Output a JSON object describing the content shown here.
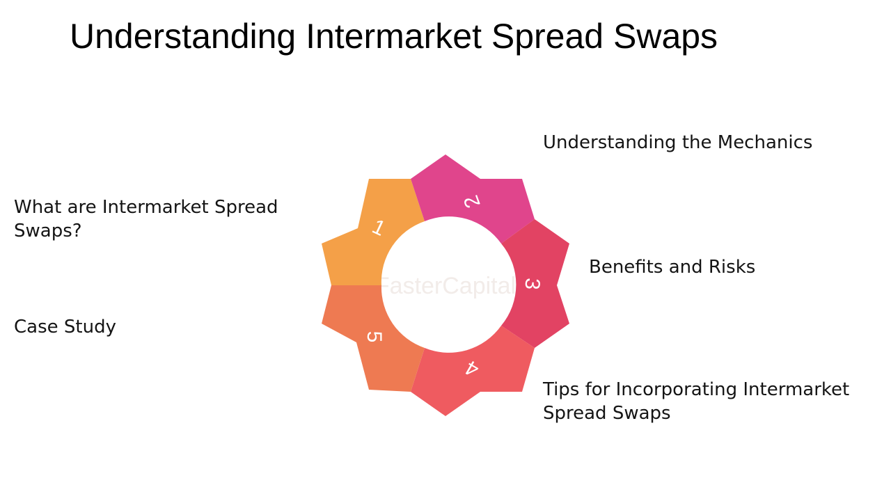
{
  "title": "Understanding Intermarket Spread Swaps",
  "watermark": "FasterCapital",
  "steps": [
    {
      "number": "1",
      "label": "What are Intermarket Spread Swaps?",
      "color": "#F4A048"
    },
    {
      "number": "2",
      "label": "Understanding the Mechanics",
      "color": "#E0458C"
    },
    {
      "number": "3",
      "label": "Benefits and Risks",
      "color": "#E24363"
    },
    {
      "number": "4",
      "label": "Tips for Incorporating Intermarket Spread Swaps",
      "color": "#EF5B60"
    },
    {
      "number": "5",
      "label": "Case Study",
      "color": "#EE7A52"
    }
  ]
}
